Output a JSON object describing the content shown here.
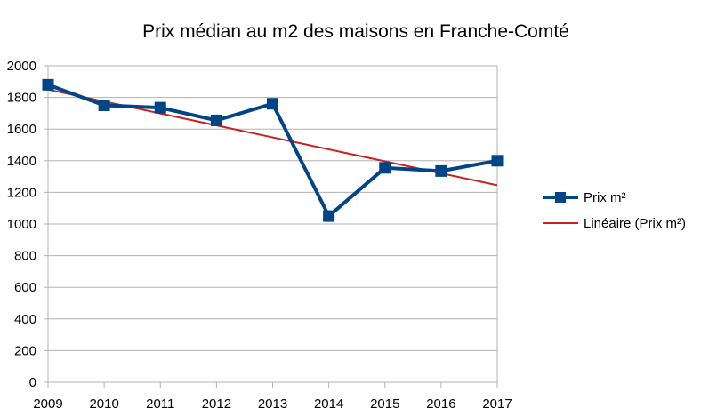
{
  "chart_data": {
    "type": "line",
    "title": "Prix médian au m2 des maisons en Franche-Comté",
    "xlabel": "",
    "ylabel": "",
    "categories": [
      "2009",
      "2010",
      "2011",
      "2012",
      "2013",
      "2014",
      "2015",
      "2016",
      "2017"
    ],
    "yticks": [
      "0",
      "200",
      "400",
      "600",
      "800",
      "1000",
      "1200",
      "1400",
      "1600",
      "1800",
      "2000"
    ],
    "ylim": [
      0,
      2000
    ],
    "grid": true,
    "legend_position": "right",
    "series": [
      {
        "name": "Prix m²",
        "values": [
          1880,
          1750,
          1735,
          1655,
          1760,
          1050,
          1355,
          1335,
          1400
        ],
        "color": "#004586",
        "marker": "square"
      }
    ],
    "trendline": {
      "name": "Linéaire (Prix m²)",
      "kind": "linear",
      "start": 1850,
      "end": 1245,
      "color": "#c9211e"
    }
  }
}
